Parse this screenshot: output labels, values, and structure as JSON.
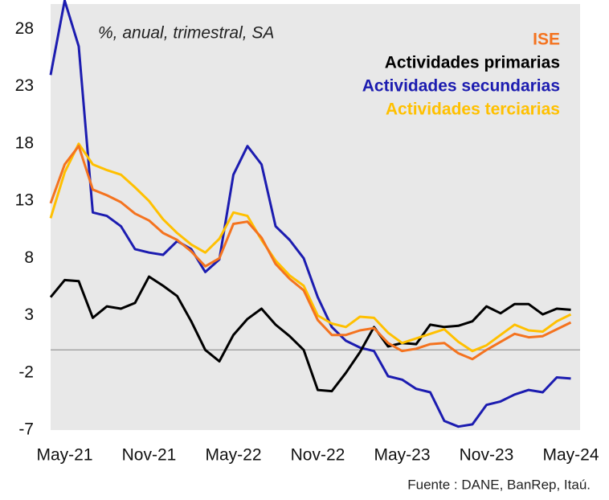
{
  "chart_data": {
    "type": "line",
    "subtitle": "%, anual, trimestral, SA",
    "source": "Fuente : DANE, BanRep, Itaú.",
    "categories": [
      null,
      "May-21",
      null,
      null,
      null,
      null,
      null,
      "Nov-21",
      null,
      null,
      null,
      null,
      null,
      "May-22",
      null,
      null,
      null,
      null,
      null,
      "Nov-22",
      null,
      null,
      null,
      null,
      null,
      "May-23",
      null,
      null,
      null,
      null,
      null,
      "Nov-23",
      null,
      null,
      null,
      null,
      null,
      "May-24"
    ],
    "series": [
      {
        "name": "ISE",
        "color": "#f4731f",
        "values": [
          12.8,
          16.2,
          17.8,
          14,
          13.5,
          12.9,
          11.9,
          11.3,
          10.2,
          9.6,
          8.6,
          7.3,
          8,
          11,
          11.2,
          9.8,
          7.5,
          6.2,
          5.2,
          2.6,
          1.3,
          1.3,
          1.7,
          1.9,
          0.6,
          -0.1,
          0.1,
          0.5,
          0.6,
          -0.3,
          -0.8,
          0,
          0.7,
          1.4,
          1.1,
          1.2,
          1.8,
          2.4
        ]
      },
      {
        "name": "Actividades primarias",
        "color": "#000000",
        "values": [
          4.6,
          6.1,
          6,
          2.8,
          3.8,
          3.6,
          4.1,
          6.4,
          5.6,
          4.7,
          2.5,
          0,
          -1,
          1.3,
          2.7,
          3.6,
          2.2,
          1.2,
          0,
          -3.5,
          -3.6,
          -2,
          -0.2,
          2,
          0.3,
          0.6,
          0.5,
          2.2,
          2,
          2.1,
          2.5,
          3.8,
          3.2,
          4,
          4,
          3.1,
          3.6,
          3.5
        ]
      },
      {
        "name": "Actividades secundarias",
        "color": "#1c1cb0",
        "values": [
          24,
          30.5,
          26.5,
          12,
          11.7,
          10.8,
          8.8,
          8.5,
          8.3,
          9.5,
          8.8,
          6.8,
          7.9,
          15.3,
          17.8,
          16.2,
          10.8,
          9.6,
          8,
          4.6,
          2,
          0.8,
          0.2,
          -0.1,
          -2.3,
          -2.6,
          -3.4,
          -3.7,
          -6.2,
          -6.7,
          -6.5,
          -4.8,
          -4.5,
          -3.9,
          -3.5,
          -3.7,
          -2.4,
          -2.5
        ]
      },
      {
        "name": "Actividades terciarias",
        "color": "#ffc000",
        "values": [
          11.5,
          15.5,
          18,
          16.2,
          15.7,
          15.3,
          14.2,
          13,
          11.4,
          10.2,
          9.2,
          8.5,
          9.7,
          12,
          11.7,
          9.6,
          7.8,
          6.5,
          5.6,
          3,
          2.3,
          2,
          2.9,
          2.8,
          1.5,
          0.6,
          1,
          1.4,
          1.8,
          0.7,
          -0.1,
          0.4,
          1.3,
          2.2,
          1.7,
          1.6,
          2.5,
          3.1
        ]
      }
    ],
    "ylim": [
      -7,
      30.2
    ],
    "yticks": [
      -7,
      -2,
      3,
      8,
      13,
      18,
      23,
      28
    ],
    "hline": 0,
    "grid": false,
    "legend": "upper right"
  }
}
